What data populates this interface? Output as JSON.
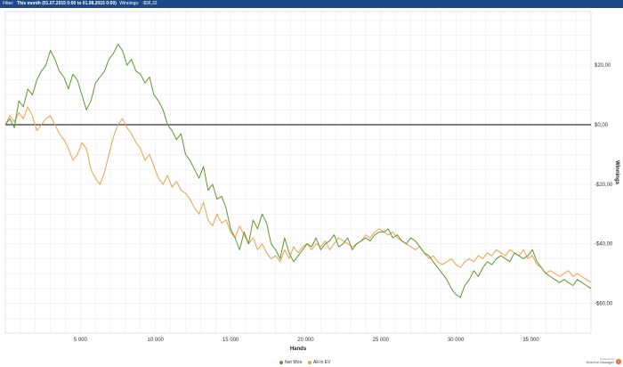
{
  "filter_bar": {
    "filter_label": "Filter:",
    "filter_value": "This month (01.07.2015 0:00 to 01.08.2015 0:00)",
    "winnings_label": "Winnings:",
    "winnings_value": "-$56,32"
  },
  "logo": {
    "small_text": "Powered by",
    "name": "Hold'em Manager",
    "mark": "2"
  },
  "colors": {
    "net_won": "#5a9a2e",
    "all_in_ev": "#f3a04a",
    "zero_line": "#000000",
    "grid": "#e2e2e2"
  },
  "chart_data": {
    "type": "line",
    "xlabel": "Hands",
    "ylabel": "Winnings",
    "xlim": [
      0,
      39000
    ],
    "ylim": [
      -70,
      38
    ],
    "x_ticks": [
      5000,
      10000,
      15000,
      20000,
      25000,
      30000,
      35000
    ],
    "x_tick_labels": [
      "5 000",
      "10 000",
      "15 000",
      "20 000",
      "25 000",
      "30 000",
      "35 000"
    ],
    "y_ticks": [
      20,
      0,
      -20,
      -40,
      -60
    ],
    "y_tick_labels": [
      "$20,00",
      "$0,00",
      "-$20,00",
      "-$40,00",
      "-$60,00"
    ],
    "grid": true,
    "zero_line": true,
    "legend_position": "bottom",
    "series": [
      {
        "name": "Net Won",
        "color": "#5a9a2e",
        "x": [
          0,
          300,
          600,
          900,
          1200,
          1500,
          1800,
          2100,
          2400,
          2700,
          3000,
          3300,
          3600,
          3900,
          4200,
          4500,
          4800,
          5100,
          5400,
          5700,
          6000,
          6300,
          6600,
          6900,
          7200,
          7500,
          7800,
          8100,
          8400,
          8700,
          9000,
          9300,
          9600,
          9900,
          10200,
          10500,
          10800,
          11100,
          11400,
          11700,
          12000,
          12300,
          12600,
          12900,
          13200,
          13500,
          13800,
          14100,
          14400,
          14700,
          15000,
          15300,
          15600,
          15900,
          16200,
          16500,
          16800,
          17100,
          17400,
          17700,
          18000,
          18300,
          18600,
          18900,
          19200,
          19500,
          19800,
          20100,
          20400,
          20700,
          21000,
          21300,
          21600,
          21900,
          22200,
          22500,
          22800,
          23100,
          23400,
          23700,
          24000,
          24300,
          24600,
          24900,
          25200,
          25500,
          25800,
          26100,
          26400,
          26700,
          27000,
          27300,
          27600,
          27900,
          28200,
          28500,
          28800,
          29100,
          29400,
          29700,
          30000,
          30300,
          30600,
          30900,
          31200,
          31500,
          31800,
          32100,
          32400,
          32700,
          33000,
          33300,
          33600,
          33900,
          34200,
          34500,
          34800,
          35100,
          35400,
          35700,
          36000,
          36300,
          36600,
          36900,
          37200,
          37500,
          37800,
          38100,
          38400,
          38700,
          39000
        ],
        "values": [
          0,
          2,
          -1,
          8,
          6,
          12,
          10,
          15,
          18,
          20,
          25,
          22,
          18,
          16,
          12,
          17,
          15,
          10,
          5,
          8,
          14,
          16,
          18,
          22,
          24,
          27,
          25,
          20,
          22,
          18,
          17,
          14,
          16,
          10,
          8,
          5,
          0,
          -2,
          -5,
          -3,
          -10,
          -12,
          -15,
          -18,
          -14,
          -22,
          -20,
          -25,
          -24,
          -28,
          -35,
          -38,
          -42,
          -36,
          -40,
          -32,
          -35,
          -30,
          -33,
          -40,
          -42,
          -45,
          -38,
          -43,
          -46,
          -44,
          -42,
          -40,
          -41,
          -38,
          -42,
          -40,
          -39,
          -37,
          -41,
          -40,
          -38,
          -42,
          -40,
          -39,
          -38,
          -39,
          -37,
          -36,
          -36,
          -35,
          -38,
          -37,
          -39,
          -40,
          -38,
          -39,
          -41,
          -43,
          -44,
          -46,
          -48,
          -50,
          -52,
          -55,
          -57,
          -58,
          -54,
          -52,
          -49,
          -51,
          -48,
          -46,
          -47,
          -45,
          -44,
          -45,
          -46,
          -43,
          -44,
          -45,
          -44,
          -42,
          -46,
          -48,
          -50,
          -51,
          -52,
          -53,
          -52,
          -53,
          -54,
          -52,
          -53,
          -54,
          -55
        ]
      },
      {
        "name": "All-In EV",
        "color": "#f3a04a",
        "x": [
          0,
          300,
          600,
          900,
          1200,
          1500,
          1800,
          2100,
          2400,
          2700,
          3000,
          3300,
          3600,
          3900,
          4200,
          4500,
          4800,
          5100,
          5400,
          5700,
          6000,
          6300,
          6600,
          6900,
          7200,
          7500,
          7800,
          8100,
          8400,
          8700,
          9000,
          9300,
          9600,
          9900,
          10200,
          10500,
          10800,
          11100,
          11400,
          11700,
          12000,
          12300,
          12600,
          12900,
          13200,
          13500,
          13800,
          14100,
          14400,
          14700,
          15000,
          15300,
          15600,
          15900,
          16200,
          16500,
          16800,
          17100,
          17400,
          17700,
          18000,
          18300,
          18600,
          18900,
          19200,
          19500,
          19800,
          20100,
          20400,
          20700,
          21000,
          21300,
          21600,
          21900,
          22200,
          22500,
          22800,
          23100,
          23400,
          23700,
          24000,
          24300,
          24600,
          24900,
          25200,
          25500,
          25800,
          26100,
          26400,
          26700,
          27000,
          27300,
          27600,
          27900,
          28200,
          28500,
          28800,
          29100,
          29400,
          29700,
          30000,
          30300,
          30600,
          30900,
          31200,
          31500,
          31800,
          32100,
          32400,
          32700,
          33000,
          33300,
          33600,
          33900,
          34200,
          34500,
          34800,
          35100,
          35400,
          35700,
          36000,
          36300,
          36600,
          36900,
          37200,
          37500,
          37800,
          38100,
          38400,
          38700,
          39000
        ],
        "values": [
          0,
          3,
          1,
          4,
          2,
          6,
          3,
          -2,
          0,
          2,
          3,
          0,
          -3,
          -5,
          -8,
          -12,
          -10,
          -6,
          -8,
          -15,
          -18,
          -20,
          -16,
          -10,
          -4,
          0,
          2,
          -1,
          -3,
          -6,
          -8,
          -12,
          -10,
          -14,
          -18,
          -20,
          -17,
          -21,
          -19,
          -22,
          -23,
          -25,
          -28,
          -30,
          -26,
          -32,
          -34,
          -30,
          -33,
          -32,
          -36,
          -38,
          -34,
          -37,
          -40,
          -38,
          -42,
          -40,
          -43,
          -45,
          -44,
          -46,
          -42,
          -45,
          -41,
          -43,
          -41,
          -40,
          -42,
          -40,
          -41,
          -39,
          -42,
          -40,
          -38,
          -39,
          -40,
          -41,
          -40,
          -39,
          -37,
          -38,
          -36,
          -35,
          -36,
          -37,
          -36,
          -38,
          -39,
          -40,
          -41,
          -42,
          -41,
          -43,
          -45,
          -44,
          -46,
          -47,
          -46,
          -45,
          -47,
          -48,
          -46,
          -45,
          -46,
          -44,
          -45,
          -43,
          -44,
          -42,
          -43,
          -44,
          -42,
          -43,
          -44,
          -42,
          -45,
          -44,
          -47,
          -48,
          -50,
          -49,
          -50,
          -51,
          -50,
          -49,
          -51,
          -50,
          -51,
          -52,
          -53
        ]
      }
    ]
  }
}
